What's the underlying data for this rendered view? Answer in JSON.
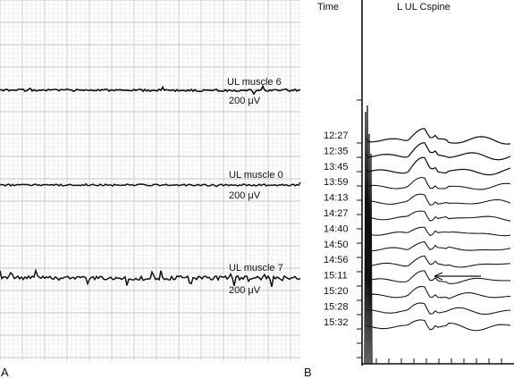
{
  "panel_a": {
    "label": "A",
    "traces": [
      {
        "name": "UL muscle 6",
        "scale": "200 μV"
      },
      {
        "name": "UL muscle 0",
        "scale": "200 μV"
      },
      {
        "name": "UL muscle 7",
        "scale": "200 μV"
      }
    ]
  },
  "panel_b": {
    "label": "B",
    "time_header": "Time",
    "title": "L UL Cspine",
    "times": [
      "12:27",
      "12:35",
      "13:45",
      "13:59",
      "14:13",
      "14:27",
      "14:40",
      "14:50",
      "14:56",
      "15:11",
      "15:20",
      "15:28",
      "15:32"
    ]
  }
}
